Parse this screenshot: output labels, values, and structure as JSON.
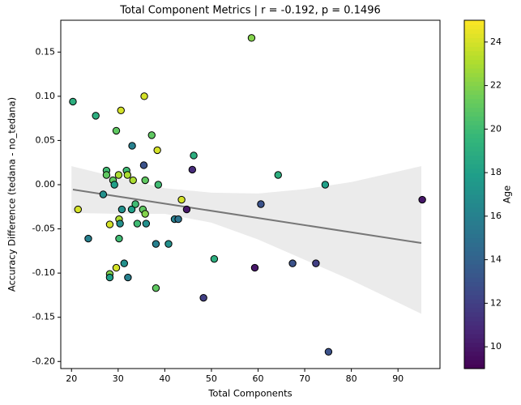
{
  "chart_data": {
    "type": "scatter",
    "title": "Total Component Metrics | r = -0.192, p = 0.1496",
    "x_label": "Total Components",
    "y_label": "Accuracy Difference (tedana - no_tedana)",
    "xlim": [
      17.7,
      99.0
    ],
    "ylim": [
      -0.208,
      0.186
    ],
    "xticks": [
      20,
      30,
      40,
      50,
      60,
      70,
      80,
      90
    ],
    "yticks": [
      {
        "value": -0.2,
        "label": "-0.20"
      },
      -0.15,
      {
        "value": -0.1,
        "label": "-0.10"
      },
      -0.05,
      {
        "value": 0,
        "label": "0.00"
      },
      0.05,
      {
        "value": 0.1,
        "label": "0.10"
      },
      0.15
    ],
    "grid": false,
    "series": [
      {
        "x": [
          20.3,
          21.4,
          25.2,
          23.6,
          26.8,
          27.5,
          27.5,
          28.2,
          28.2,
          28.2,
          28.9,
          29.2,
          29.6,
          29.6,
          30.1,
          30.2,
          30.2,
          30.4,
          30.6,
          30.8,
          31.3,
          31.8,
          32.0,
          32.1,
          32.9,
          33.0,
          33.2,
          33.7,
          34.1,
          35.3,
          35.5,
          35.6,
          35.8,
          35.8,
          36.0,
          37.2,
          38.1,
          38.1,
          38.4,
          38.6,
          40.8,
          42.1,
          42.9,
          43.6,
          44.7,
          45.9,
          46.2,
          48.3,
          50.6,
          58.6,
          59.3,
          60.6,
          64.3,
          67.4,
          72.4,
          74.4,
          75.1,
          95.2
        ],
        "values": [
          0.094,
          -0.028,
          0.078,
          -0.061,
          -0.011,
          0.016,
          0.011,
          -0.045,
          -0.101,
          -0.105,
          0.005,
          0.0,
          0.061,
          -0.094,
          0.011,
          -0.061,
          -0.039,
          -0.044,
          0.084,
          -0.028,
          -0.089,
          0.016,
          0.011,
          -0.105,
          -0.028,
          0.044,
          0.005,
          -0.022,
          -0.044,
          -0.028,
          0.022,
          0.1,
          -0.033,
          0.005,
          -0.044,
          0.056,
          -0.067,
          -0.117,
          0.039,
          0.0,
          -0.067,
          -0.039,
          -0.039,
          -0.017,
          -0.028,
          0.017,
          0.033,
          -0.128,
          -0.084,
          0.166,
          -0.094,
          -0.022,
          0.011,
          -0.089,
          -0.089,
          0.0,
          -0.189,
          -0.017
        ],
        "c": [
          19,
          24,
          19,
          16,
          17,
          20,
          21,
          24,
          22,
          18,
          21,
          18,
          21,
          24,
          23,
          20,
          23,
          17,
          24,
          17,
          17,
          20,
          23,
          16,
          18,
          16,
          23,
          20,
          20,
          21,
          13,
          24,
          22,
          21,
          17,
          21,
          16,
          21,
          24,
          20,
          17,
          16,
          15,
          24,
          10,
          11,
          19,
          12,
          19,
          22,
          10,
          13,
          19,
          13,
          12,
          18,
          13,
          10
        ]
      }
    ],
    "regression": {
      "color": "#777777",
      "x": [
        20.3,
        95.0
      ],
      "values": [
        -0.0055,
        -0.066
      ]
    },
    "band": {
      "color": "#ebebeb",
      "x": [
        20,
        30,
        40,
        50,
        60,
        70,
        80,
        95
      ],
      "upper": [
        0.021,
        0.008,
        -0.004,
        -0.009,
        -0.01,
        -0.005,
        0.003,
        0.021
      ],
      "lower": [
        -0.032,
        -0.033,
        -0.033,
        -0.043,
        -0.062,
        -0.085,
        -0.108,
        -0.146
      ]
    },
    "colorbar": {
      "label": "Age",
      "colormap": "viridis",
      "clim": [
        9,
        25
      ],
      "ticks": [
        10,
        12,
        14,
        16,
        18,
        20,
        22,
        24
      ]
    }
  }
}
